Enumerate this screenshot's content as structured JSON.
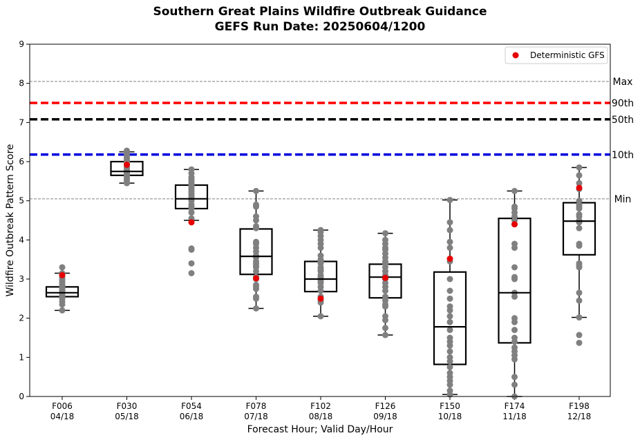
{
  "chart_data": {
    "type": "box",
    "title": "Southern Great Plains Wildfire Outbreak Guidance",
    "subtitle": "GEFS Run Date: 20250604/1200",
    "xlabel": "Forecast Hour; Valid Day/Hour",
    "ylabel": "Wildfire Outbreak Pattern Score",
    "ylim": [
      0,
      9
    ],
    "yticks": [
      0,
      1,
      2,
      3,
      4,
      5,
      6,
      7,
      8,
      9
    ],
    "grid": false,
    "legend": {
      "placement": "top-right",
      "entries": [
        {
          "label": "Deterministic GFS",
          "color": "#e60000"
        }
      ]
    },
    "categories": [
      {
        "hour": "F006",
        "valid": "04/18"
      },
      {
        "hour": "F030",
        "valid": "05/18"
      },
      {
        "hour": "F054",
        "valid": "06/18"
      },
      {
        "hour": "F078",
        "valid": "07/18"
      },
      {
        "hour": "F102",
        "valid": "08/18"
      },
      {
        "hour": "F126",
        "valid": "09/18"
      },
      {
        "hour": "F150",
        "valid": "10/18"
      },
      {
        "hour": "F174",
        "valid": "11/18"
      },
      {
        "hour": "F198",
        "valid": "12/18"
      }
    ],
    "reference_lines": [
      {
        "label": "Max",
        "value": 8.05,
        "color": "#808080",
        "style": "dashed-thin"
      },
      {
        "label": "90th",
        "value": 7.5,
        "color": "#ff0000",
        "style": "dashed-thick"
      },
      {
        "label": "50th",
        "value": 7.08,
        "color": "#000000",
        "style": "dashed-thick"
      },
      {
        "label": "10th",
        "value": 6.18,
        "color": "#0000dd",
        "style": "dashed-thick"
      },
      {
        "label": "Min",
        "value": 5.05,
        "color": "#808080",
        "style": "dashed-thin"
      }
    ],
    "boxes": [
      {
        "whisker_low": 2.2,
        "q1": 2.55,
        "median": 2.65,
        "q3": 2.8,
        "whisker_high": 3.15,
        "members": [
          2.2,
          2.35,
          2.42,
          2.5,
          2.55,
          2.58,
          2.6,
          2.62,
          2.65,
          2.68,
          2.7,
          2.72,
          2.75,
          2.78,
          2.8,
          2.85,
          2.9,
          2.95,
          3.0,
          3.05,
          3.1,
          3.15,
          3.3
        ],
        "deterministic": 3.1
      },
      {
        "whisker_low": 5.45,
        "q1": 5.65,
        "median": 5.75,
        "q3": 6.0,
        "whisker_high": 6.25,
        "members": [
          5.45,
          5.5,
          5.55,
          5.6,
          5.65,
          5.7,
          5.72,
          5.75,
          5.78,
          5.8,
          5.85,
          5.9,
          5.95,
          6.0,
          6.05,
          6.1,
          6.15,
          6.2,
          6.25,
          6.28
        ],
        "deterministic": 5.92
      },
      {
        "whisker_low": 4.5,
        "q1": 4.8,
        "median": 5.05,
        "q3": 5.4,
        "whisker_high": 5.8,
        "members": [
          3.15,
          3.4,
          3.75,
          3.78,
          4.55,
          4.7,
          4.8,
          4.85,
          4.9,
          5.0,
          5.05,
          5.1,
          5.15,
          5.2,
          5.25,
          5.3,
          5.35,
          5.4,
          5.45,
          5.5,
          5.55,
          5.6,
          5.7,
          5.8
        ],
        "deterministic": 4.45
      },
      {
        "whisker_low": 2.25,
        "q1": 3.12,
        "median": 3.58,
        "q3": 4.28,
        "whisker_high": 5.25,
        "members": [
          2.25,
          2.5,
          2.55,
          2.75,
          2.8,
          2.85,
          3.0,
          3.05,
          3.2,
          3.3,
          3.35,
          3.4,
          3.45,
          3.55,
          3.6,
          3.7,
          3.8,
          3.9,
          3.95,
          4.3,
          4.35,
          4.5,
          4.6,
          4.85,
          4.9,
          5.25
        ],
        "deterministic": 3.02
      },
      {
        "whisker_low": 2.05,
        "q1": 2.68,
        "median": 3.0,
        "q3": 3.45,
        "whisker_high": 4.25,
        "members": [
          2.05,
          2.4,
          2.45,
          2.55,
          2.7,
          2.8,
          2.9,
          2.95,
          3.0,
          3.05,
          3.1,
          3.2,
          3.25,
          3.3,
          3.4,
          3.45,
          3.5,
          3.6,
          3.8,
          3.9,
          4.0,
          4.1,
          4.2,
          4.25
        ],
        "deterministic": 2.5
      },
      {
        "whisker_low": 1.57,
        "q1": 2.52,
        "median": 3.05,
        "q3": 3.38,
        "whisker_high": 4.17,
        "members": [
          1.57,
          1.75,
          1.95,
          2.05,
          2.3,
          2.35,
          2.45,
          2.55,
          2.7,
          2.8,
          2.9,
          3.0,
          3.05,
          3.1,
          3.2,
          3.3,
          3.4,
          3.45,
          3.55,
          3.65,
          3.75,
          3.8,
          3.9,
          4.0,
          4.17
        ],
        "deterministic": 3.03
      },
      {
        "whisker_low": 0.05,
        "q1": 0.82,
        "median": 1.78,
        "q3": 3.18,
        "whisker_high": 5.02,
        "members": [
          0.05,
          0.15,
          0.3,
          0.4,
          0.5,
          0.6,
          0.75,
          0.9,
          1.0,
          1.15,
          1.3,
          1.4,
          1.5,
          1.7,
          1.9,
          2.05,
          2.2,
          2.3,
          2.5,
          2.7,
          3.0,
          3.45,
          3.8,
          3.95,
          4.25,
          4.45,
          5.02
        ],
        "deterministic": 3.52
      },
      {
        "whisker_low": 0.0,
        "q1": 1.37,
        "median": 2.65,
        "q3": 4.55,
        "whisker_high": 5.25,
        "members": [
          0.0,
          0.3,
          0.5,
          0.95,
          1.05,
          1.15,
          1.25,
          1.4,
          1.5,
          1.7,
          1.9,
          2.0,
          2.55,
          2.65,
          3.0,
          3.05,
          3.3,
          3.8,
          3.9,
          4.4,
          4.5,
          4.6,
          4.7,
          4.8,
          4.85,
          5.25
        ],
        "deterministic": 4.4
      },
      {
        "whisker_low": 2.02,
        "q1": 3.62,
        "median": 4.48,
        "q3": 4.95,
        "whisker_high": 5.85,
        "members": [
          1.37,
          1.57,
          2.02,
          2.45,
          2.65,
          3.3,
          3.35,
          3.4,
          3.85,
          3.9,
          4.3,
          4.45,
          4.5,
          4.6,
          4.65,
          4.8,
          4.85,
          4.9,
          5.0,
          5.3,
          5.45,
          5.65,
          5.85
        ],
        "deterministic": 5.33
      }
    ]
  }
}
